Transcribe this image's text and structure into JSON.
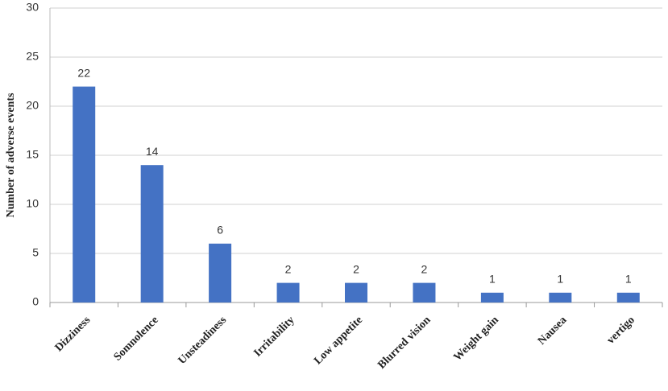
{
  "chart_data": {
    "type": "bar",
    "y_label": "Number of adverse events",
    "categories": [
      "Dizziness",
      "Somnolence",
      "Unsteadiness",
      "Irritability",
      "Low appetite",
      "Blurred vision",
      "Weight gain",
      "Nausea",
      "vertigo"
    ],
    "values": [
      22,
      14,
      6,
      2,
      2,
      2,
      1,
      1,
      1
    ],
    "color": "#4472c4",
    "ylim": [
      0,
      30
    ],
    "yticks": [
      0,
      5,
      10,
      15,
      20,
      25,
      30
    ],
    "grid": true
  }
}
